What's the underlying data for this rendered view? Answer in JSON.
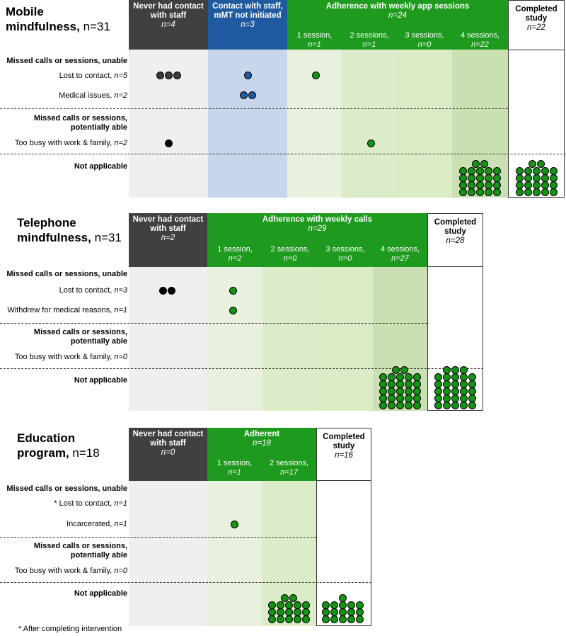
{
  "colors": {
    "dark": "#404040",
    "blue": "#1f5aa0",
    "green": "#1e9a1e",
    "grey_bg": "#efefef",
    "blue_bg": "#c7d6ea",
    "g1": "#e8f1de",
    "g2": "#ddecc8",
    "g3": "#dbebc6",
    "g4": "#cadfb2",
    "dot_green": "#159315",
    "dot_dark": "#3c3c3c",
    "dot_blue": "#1f5aa0",
    "dot_black": "#000000"
  },
  "panels": [
    {
      "title_bold_1": "Mobile",
      "title_bold_2": "mindfulness,",
      "title_n": "n=31",
      "row_labels": {
        "group1": "Missed calls or sessions, unable",
        "lost": "Lost to contact,",
        "lost_n": "n=5",
        "medical": "Medical issues,",
        "medical_n": "n=2",
        "group2_a": "Missed calls or sessions,",
        "group2_b": "potentially able",
        "busy": "Too busy with work & family,",
        "busy_n": "n=2",
        "na": "Not applicable"
      },
      "headers": {
        "never": {
          "line1": "Never had contact",
          "line2": "with staff",
          "n": "n=4"
        },
        "contact": {
          "line1": "Contact with staff,",
          "line2": "mMT not initiated",
          "n": "n=3"
        },
        "adherence": {
          "line1": "Adherence with weekly app sessions",
          "n": "n=24"
        },
        "sessions": [
          {
            "label": "1 session,",
            "n": "n=1"
          },
          {
            "label": "2 sessions,",
            "n": "n=1"
          },
          {
            "label": "3 sessions,",
            "n": "n=0"
          },
          {
            "label": "4 sessions,",
            "n": "n=22"
          }
        ],
        "completed": {
          "line1": "Completed",
          "line2": "study",
          "n": "n=22"
        }
      },
      "counts": {
        "lost_never": 3,
        "lost_contact": 1,
        "lost_s1": 1,
        "medical_contact": 2,
        "busy_never": 1,
        "busy_s2": 1,
        "na_s4": 22,
        "na_completed": 22
      }
    },
    {
      "title_bold_1": "Telephone",
      "title_bold_2": "mindfulness,",
      "title_n": "n=31",
      "row_labels": {
        "group1": "Missed calls or sessions, unable",
        "lost": "Lost to contact,",
        "lost_n": "n=3",
        "withdrew": "Withdrew for medical reasons,",
        "withdrew_n": "n=1",
        "group2_a": "Missed calls or sessions,",
        "group2_b": "potentially able",
        "busy": "Too busy with work & family,",
        "busy_n": "n=0",
        "na": "Not applicable"
      },
      "headers": {
        "never": {
          "line1": "Never had contact",
          "line2": "with staff",
          "n": "n=2"
        },
        "adherence": {
          "line1": "Adherence with weekly calls",
          "n": "n=29"
        },
        "sessions": [
          {
            "label": "1 session,",
            "n": "n=2"
          },
          {
            "label": "2 sessions,",
            "n": "n=0"
          },
          {
            "label": "3 sessions,",
            "n": "n=0"
          },
          {
            "label": "4 sessions,",
            "n": "n=27"
          }
        ],
        "completed": {
          "line1": "Completed",
          "line2": "study",
          "n": "n=28"
        }
      },
      "counts": {
        "lost_never": 2,
        "lost_s1": 1,
        "withdrew_s1": 1,
        "na_s4": 27,
        "na_completed": 28
      }
    },
    {
      "title_bold_1": "Education",
      "title_bold_2": "program,",
      "title_n": "n=18",
      "row_labels": {
        "group1": "Missed calls or sessions, unable",
        "lost": "* Lost to contact,",
        "lost_n": "n=1",
        "incarcerated": "Incarcerated,",
        "incarcerated_n": "n=1",
        "group2_a": "Missed calls or sessions,",
        "group2_b": "potentially able",
        "busy": "Too busy with work & family,",
        "busy_n": "n=0",
        "na": "Not applicable"
      },
      "headers": {
        "never": {
          "line1": "Never had contact",
          "line2": "with staff",
          "n": "n=0"
        },
        "adherence": {
          "line1": "Adherent",
          "n": "n=18"
        },
        "sessions": [
          {
            "label": "1 session,",
            "n": "n=1"
          },
          {
            "label": "2 sessions,",
            "n": "n=17"
          }
        ],
        "completed": {
          "line1": "Completed",
          "line2": "study",
          "n": "n=16"
        }
      },
      "counts": {
        "incarcerated_s1": 1,
        "na_s2": 17,
        "na_completed": 16
      }
    }
  ],
  "footnote": "* After completing intervention"
}
